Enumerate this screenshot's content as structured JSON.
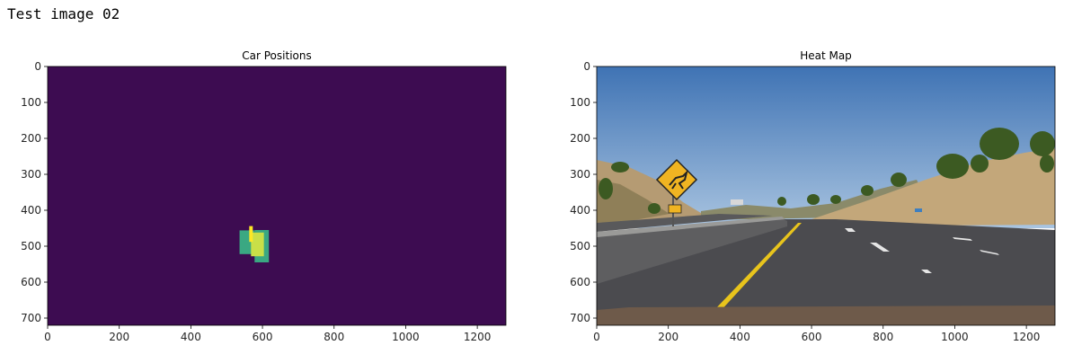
{
  "cell_output_title": "Test image 02",
  "colors": {
    "heat_background": "#3d0c51",
    "heat_low": "#3aa882",
    "heat_mid": "#7fc96a",
    "heat_high": "#c9df48",
    "heat_peak": "#fde725",
    "sky_top": "#3f73b4",
    "sky_bottom": "#a9c4e0",
    "hills": "#c3a77a",
    "road": "#4b4b4f",
    "lane_yellow": "#e8c41c",
    "sign_yellow": "#f0b422"
  },
  "chart_data": [
    {
      "type": "heatmap",
      "title": "Car Positions",
      "xlabel": "",
      "ylabel": "",
      "xlim": [
        0,
        1280
      ],
      "ylim": [
        720,
        0
      ],
      "xticks": [
        0,
        200,
        400,
        600,
        800,
        1000,
        1200
      ],
      "yticks": [
        0,
        100,
        200,
        300,
        400,
        500,
        600,
        700
      ],
      "xtick_labels": [
        "0",
        "200",
        "400",
        "600",
        "800",
        "1000",
        "1200"
      ],
      "ytick_labels": [
        "0",
        "100",
        "200",
        "300",
        "400",
        "500",
        "600",
        "700"
      ],
      "hot_regions": [
        {
          "x0": 536,
          "x1": 578,
          "y0": 456,
          "y1": 522,
          "level": "low"
        },
        {
          "x0": 578,
          "x1": 618,
          "y0": 455,
          "y1": 545,
          "level": "low"
        },
        {
          "x0": 568,
          "x1": 604,
          "y0": 462,
          "y1": 528,
          "level": "high"
        },
        {
          "x0": 563,
          "x1": 573,
          "y0": 444,
          "y1": 488,
          "level": "peak"
        }
      ]
    },
    {
      "type": "image",
      "title": "Heat Map",
      "xlabel": "",
      "ylabel": "",
      "xlim": [
        0,
        1280
      ],
      "ylim": [
        720,
        0
      ],
      "xticks": [
        0,
        200,
        400,
        600,
        800,
        1000,
        1200
      ],
      "yticks": [
        0,
        100,
        200,
        300,
        400,
        500,
        600,
        700
      ],
      "xtick_labels": [
        "0",
        "200",
        "400",
        "600",
        "800",
        "1000",
        "1200"
      ],
      "ytick_labels": [
        "0",
        "100",
        "200",
        "300",
        "400",
        "500",
        "600",
        "700"
      ],
      "scene": "road-scene-with-deer-crossing-sign"
    }
  ]
}
